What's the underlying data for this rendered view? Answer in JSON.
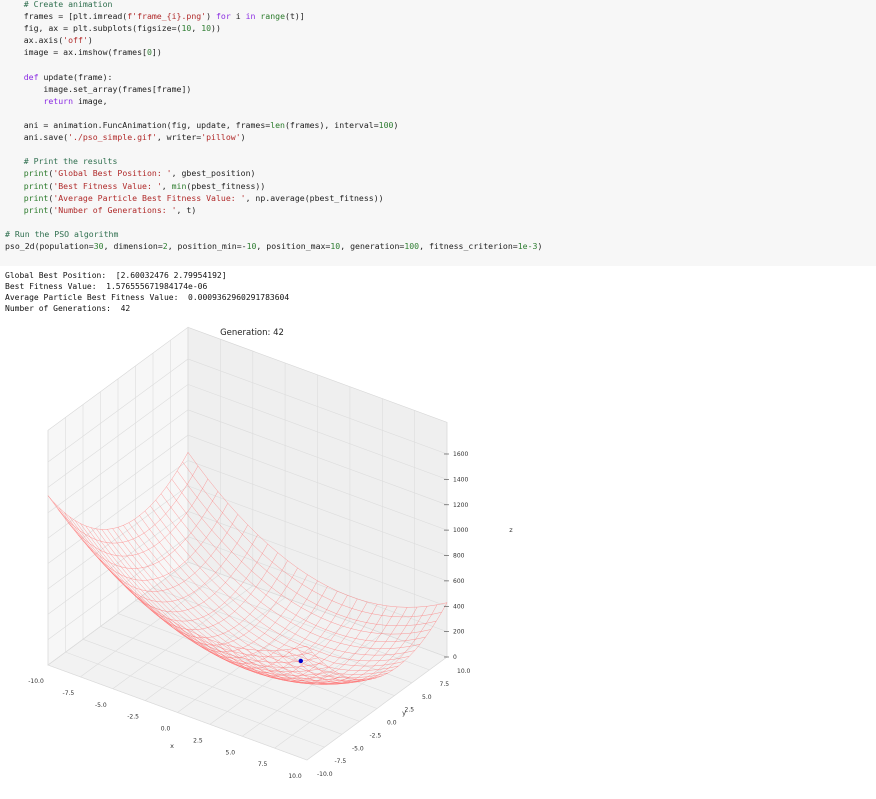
{
  "code": {
    "lines": [
      "    # Create animation",
      "    frames = [plt.imread(f'frame_{i}.png') for i in range(t)]",
      "    fig, ax = plt.subplots(figsize=(10, 10))",
      "    ax.axis('off')",
      "    image = ax.imshow(frames[0])",
      "",
      "    def update(frame):",
      "        image.set_array(frames[frame])",
      "        return image,",
      "",
      "    ani = animation.FuncAnimation(fig, update, frames=len(frames), interval=100)",
      "    ani.save('./pso_simple.gif', writer='pillow')",
      "",
      "    # Print the results",
      "    print('Global Best Position: ', gbest_position)",
      "    print('Best Fitness Value: ', min(pbest_fitness))",
      "    print('Average Particle Best Fitness Value: ', np.average(pbest_fitness))",
      "    print('Number of Generations: ', t)",
      "",
      "# Run the PSO algorithm",
      "pso_2d(population=30, dimension=2, position_min=-10, position_max=10, generation=100, fitness_criterion=1e-3)"
    ]
  },
  "output": {
    "lines": [
      "Global Best Position:  [2.60032476 2.79954192]",
      "Best Fitness Value:  1.576555671984174e-06",
      "Average Particle Best Fitness Value:  0.0009362960291783604",
      "Number of Generations:  42"
    ]
  },
  "chart_data": {
    "type": "surface",
    "title": "Generation: 42",
    "xlabel": "x",
    "ylabel": "y",
    "zlabel": "z",
    "x_ticks": [
      "-10.0",
      "-7.5",
      "-5.0",
      "-2.5",
      "0.0",
      "2.5",
      "5.0",
      "7.5",
      "10.0"
    ],
    "y_ticks": [
      "-10.0",
      "-7.5",
      "-5.0",
      "-2.5",
      "0.0",
      "2.5",
      "5.0",
      "7.5",
      "10.0"
    ],
    "z_ticks": [
      "0",
      "200",
      "400",
      "600",
      "800",
      "1000",
      "1200",
      "1400",
      "1600"
    ],
    "xlim": [
      -10,
      10
    ],
    "ylim": [
      -10,
      10
    ],
    "zlim": [
      0,
      1600
    ],
    "surface_color": "#ff6b6b",
    "particle_color": "#0000cc",
    "particle": {
      "x": 2.60032476,
      "y": 2.79954192,
      "z": 0
    }
  }
}
